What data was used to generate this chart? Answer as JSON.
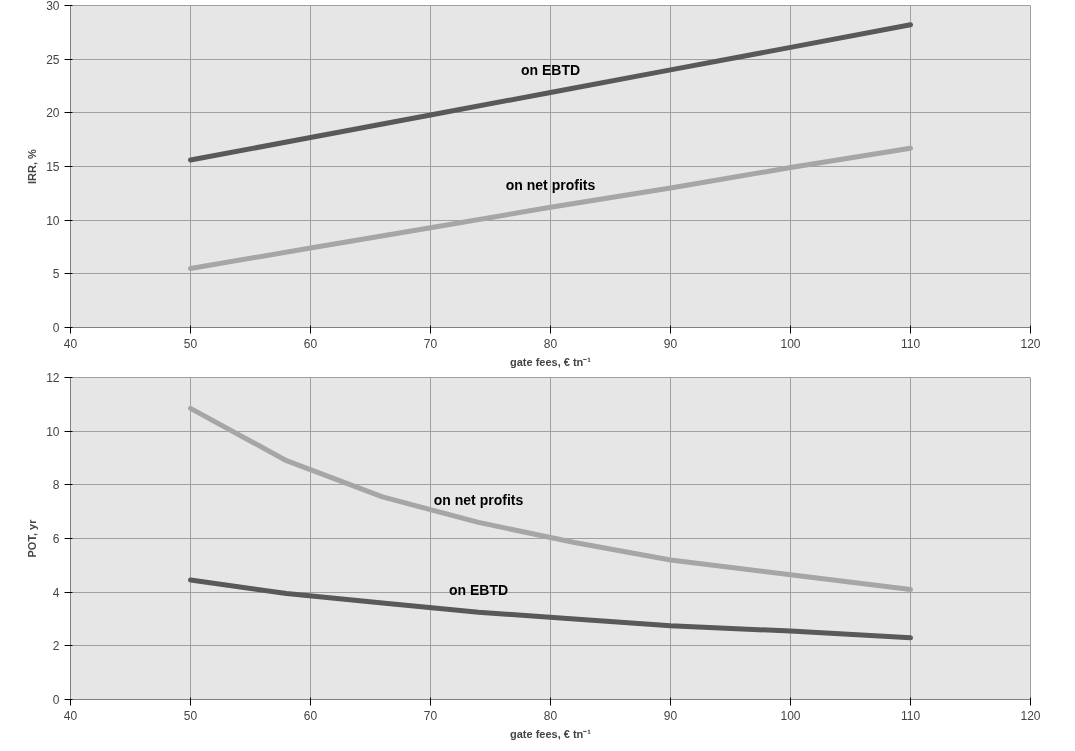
{
  "chart_data": [
    {
      "type": "line",
      "xlabel": "gate fees, € tn⁻¹",
      "ylabel": "IRR, %",
      "xlim": [
        40,
        120
      ],
      "xticks": [
        40,
        50,
        60,
        70,
        80,
        90,
        100,
        110,
        120
      ],
      "ylim": [
        0,
        30
      ],
      "yticks": [
        0,
        5,
        10,
        15,
        20,
        25,
        30
      ],
      "grid": true,
      "marker": "none",
      "line_style": "solid",
      "x": [
        50,
        60,
        70,
        80,
        90,
        100,
        110
      ],
      "series": [
        {
          "name": "on EBTD",
          "color": "#595959",
          "values": [
            15.6,
            17.7,
            19.8,
            21.9,
            24.0,
            26.1,
            28.2
          ]
        },
        {
          "name": "on net profits",
          "color": "#a6a6a6",
          "values": [
            5.5,
            7.4,
            9.3,
            11.2,
            13.0,
            14.9,
            16.7
          ]
        }
      ]
    },
    {
      "type": "line",
      "xlabel": "gate fees, € tn⁻¹",
      "ylabel": "POT, yr",
      "xlim": [
        40,
        120
      ],
      "xticks": [
        40,
        50,
        60,
        70,
        80,
        90,
        100,
        110,
        120
      ],
      "ylim": [
        0,
        12
      ],
      "yticks": [
        0,
        2,
        4,
        6,
        8,
        10,
        12
      ],
      "grid": true,
      "marker": "none",
      "line_style": "solid",
      "x": [
        50,
        58,
        66,
        74,
        82,
        90,
        100,
        110
      ],
      "series": [
        {
          "name": "on net profits",
          "color": "#a6a6a6",
          "values": [
            10.85,
            8.9,
            7.55,
            6.6,
            5.85,
            5.2,
            4.65,
            4.1
          ]
        },
        {
          "name": "on EBTD",
          "color": "#595959",
          "values": [
            4.45,
            3.95,
            3.6,
            3.25,
            3.0,
            2.75,
            2.55,
            2.3
          ]
        }
      ]
    }
  ]
}
